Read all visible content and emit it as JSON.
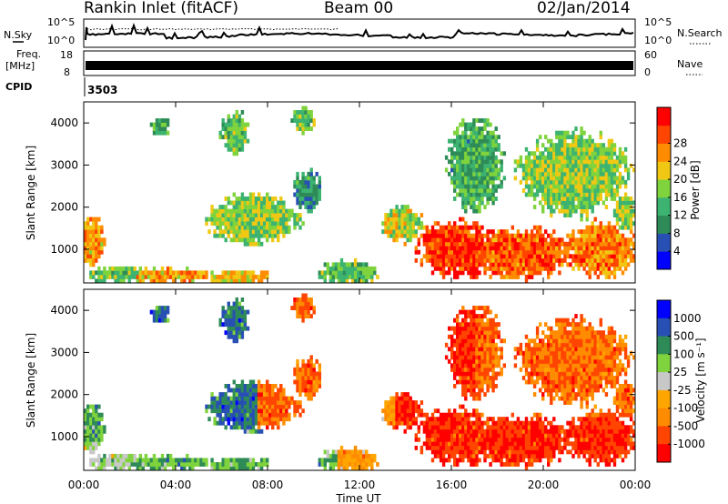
{
  "header": {
    "station": "Rankin Inlet (fitACF)",
    "beam": "Beam 00",
    "date": "02/Jan/2014"
  },
  "noise_panel": {
    "left_label": "N.Sky",
    "right_label": "N.Search",
    "left_ticks": [
      "10^5",
      "10^0"
    ],
    "right_ticks": [
      "10^5",
      "10^0"
    ]
  },
  "freq_panel": {
    "left_label_1": "Freq.",
    "left_label_2": "[MHz]",
    "right_label": "Nave",
    "left_ticks": [
      "18",
      "8"
    ],
    "right_ticks": [
      "60",
      "0"
    ]
  },
  "cpid": {
    "label": "CPID",
    "value": "3503"
  },
  "colors": {
    "power": [
      "#0000ff",
      "#2850b4",
      "#2e8b57",
      "#3cb371",
      "#7fd33c",
      "#f0c814",
      "#ff8c00",
      "#ff4500",
      "#ff0000"
    ],
    "velocity": [
      "#ff0000",
      "#ff4500",
      "#ff8c00",
      "#ffa500",
      "#c8c8c8",
      "#7fd33c",
      "#2e8b57",
      "#2850b4",
      "#0000ff"
    ]
  },
  "chart_data": [
    {
      "type": "heatmap",
      "title": "Power",
      "ylabel": "Slant Range [km]",
      "xlabel": "Time UT",
      "x_ticks": [
        "00:00",
        "04:00",
        "08:00",
        "12:00",
        "16:00",
        "20:00",
        "00:00"
      ],
      "y_ticks": [
        "1000",
        "2000",
        "3000",
        "4000"
      ],
      "ylim": [
        200,
        4500
      ],
      "colorbar_label": "Power [dB]",
      "colorbar_ticks": [
        "4",
        "8",
        "12",
        "16",
        "20",
        "24",
        "28"
      ],
      "clim": [
        0,
        32
      ]
    },
    {
      "type": "heatmap",
      "title": "Velocity",
      "ylabel": "Slant Range [km]",
      "xlabel": "Time UT",
      "x_ticks": [
        "00:00",
        "04:00",
        "08:00",
        "12:00",
        "16:00",
        "20:00",
        "00:00"
      ],
      "y_ticks": [
        "1000",
        "2000",
        "3000",
        "4000"
      ],
      "ylim": [
        200,
        4500
      ],
      "colorbar_label": "Velocity [m s⁻¹]",
      "colorbar_ticks": [
        "1000",
        "500",
        "100",
        "25",
        "-25",
        "-100",
        "-500",
        "-1000"
      ]
    }
  ]
}
